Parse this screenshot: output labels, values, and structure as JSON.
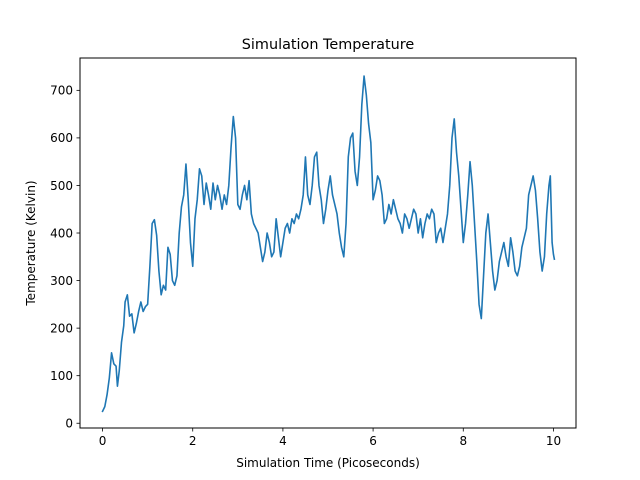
{
  "chart_data": {
    "type": "line",
    "title": "Simulation Temperature",
    "xlabel": "Simulation Time (Picoseconds)",
    "ylabel": "Temperature (Kelvin)",
    "xlim": [
      -0.5,
      10.5
    ],
    "ylim": [
      -10,
      768
    ],
    "xticks": [
      0,
      2,
      4,
      6,
      8,
      10
    ],
    "yticks": [
      0,
      100,
      200,
      300,
      400,
      500,
      600,
      700
    ],
    "grid": false,
    "legend": "none",
    "series": [
      {
        "color": "#1f77b4",
        "points": [
          [
            0.0,
            25
          ],
          [
            0.05,
            35
          ],
          [
            0.1,
            60
          ],
          [
            0.15,
            95
          ],
          [
            0.2,
            148
          ],
          [
            0.25,
            125
          ],
          [
            0.3,
            120
          ],
          [
            0.33,
            78
          ],
          [
            0.37,
            110
          ],
          [
            0.42,
            170
          ],
          [
            0.47,
            205
          ],
          [
            0.5,
            255
          ],
          [
            0.55,
            270
          ],
          [
            0.6,
            225
          ],
          [
            0.65,
            230
          ],
          [
            0.7,
            190
          ],
          [
            0.75,
            210
          ],
          [
            0.8,
            235
          ],
          [
            0.85,
            255
          ],
          [
            0.9,
            235
          ],
          [
            0.95,
            245
          ],
          [
            1.0,
            250
          ],
          [
            1.05,
            330
          ],
          [
            1.1,
            420
          ],
          [
            1.15,
            428
          ],
          [
            1.2,
            395
          ],
          [
            1.25,
            320
          ],
          [
            1.3,
            270
          ],
          [
            1.35,
            290
          ],
          [
            1.4,
            280
          ],
          [
            1.45,
            370
          ],
          [
            1.5,
            355
          ],
          [
            1.55,
            300
          ],
          [
            1.6,
            290
          ],
          [
            1.65,
            310
          ],
          [
            1.7,
            400
          ],
          [
            1.75,
            455
          ],
          [
            1.8,
            480
          ],
          [
            1.85,
            545
          ],
          [
            1.9,
            470
          ],
          [
            1.95,
            380
          ],
          [
            2.0,
            330
          ],
          [
            2.05,
            430
          ],
          [
            2.1,
            470
          ],
          [
            2.15,
            535
          ],
          [
            2.2,
            520
          ],
          [
            2.25,
            460
          ],
          [
            2.3,
            505
          ],
          [
            2.35,
            480
          ],
          [
            2.4,
            450
          ],
          [
            2.45,
            505
          ],
          [
            2.5,
            470
          ],
          [
            2.55,
            500
          ],
          [
            2.6,
            480
          ],
          [
            2.65,
            450
          ],
          [
            2.7,
            480
          ],
          [
            2.75,
            460
          ],
          [
            2.8,
            500
          ],
          [
            2.85,
            580
          ],
          [
            2.9,
            645
          ],
          [
            2.95,
            600
          ],
          [
            3.0,
            460
          ],
          [
            3.05,
            450
          ],
          [
            3.1,
            480
          ],
          [
            3.15,
            500
          ],
          [
            3.2,
            470
          ],
          [
            3.25,
            510
          ],
          [
            3.3,
            440
          ],
          [
            3.35,
            420
          ],
          [
            3.4,
            410
          ],
          [
            3.45,
            400
          ],
          [
            3.5,
            370
          ],
          [
            3.55,
            340
          ],
          [
            3.6,
            360
          ],
          [
            3.65,
            400
          ],
          [
            3.7,
            380
          ],
          [
            3.75,
            350
          ],
          [
            3.8,
            360
          ],
          [
            3.85,
            430
          ],
          [
            3.9,
            390
          ],
          [
            3.95,
            350
          ],
          [
            4.0,
            380
          ],
          [
            4.05,
            410
          ],
          [
            4.1,
            420
          ],
          [
            4.15,
            400
          ],
          [
            4.2,
            430
          ],
          [
            4.25,
            420
          ],
          [
            4.3,
            440
          ],
          [
            4.35,
            430
          ],
          [
            4.4,
            450
          ],
          [
            4.45,
            480
          ],
          [
            4.5,
            560
          ],
          [
            4.55,
            480
          ],
          [
            4.6,
            460
          ],
          [
            4.65,
            500
          ],
          [
            4.7,
            560
          ],
          [
            4.75,
            570
          ],
          [
            4.8,
            500
          ],
          [
            4.85,
            470
          ],
          [
            4.9,
            420
          ],
          [
            4.95,
            450
          ],
          [
            5.0,
            490
          ],
          [
            5.05,
            520
          ],
          [
            5.1,
            480
          ],
          [
            5.15,
            460
          ],
          [
            5.2,
            440
          ],
          [
            5.25,
            400
          ],
          [
            5.3,
            370
          ],
          [
            5.35,
            350
          ],
          [
            5.4,
            420
          ],
          [
            5.45,
            560
          ],
          [
            5.5,
            600
          ],
          [
            5.55,
            610
          ],
          [
            5.6,
            530
          ],
          [
            5.65,
            500
          ],
          [
            5.7,
            560
          ],
          [
            5.75,
            670
          ],
          [
            5.8,
            730
          ],
          [
            5.85,
            690
          ],
          [
            5.9,
            630
          ],
          [
            5.95,
            590
          ],
          [
            6.0,
            470
          ],
          [
            6.05,
            490
          ],
          [
            6.1,
            520
          ],
          [
            6.15,
            510
          ],
          [
            6.2,
            480
          ],
          [
            6.25,
            420
          ],
          [
            6.3,
            430
          ],
          [
            6.35,
            460
          ],
          [
            6.4,
            440
          ],
          [
            6.45,
            470
          ],
          [
            6.5,
            450
          ],
          [
            6.55,
            430
          ],
          [
            6.6,
            420
          ],
          [
            6.65,
            400
          ],
          [
            6.7,
            440
          ],
          [
            6.75,
            430
          ],
          [
            6.8,
            410
          ],
          [
            6.85,
            430
          ],
          [
            6.9,
            450
          ],
          [
            6.95,
            440
          ],
          [
            7.0,
            400
          ],
          [
            7.05,
            430
          ],
          [
            7.1,
            390
          ],
          [
            7.15,
            420
          ],
          [
            7.2,
            440
          ],
          [
            7.25,
            430
          ],
          [
            7.3,
            450
          ],
          [
            7.35,
            440
          ],
          [
            7.4,
            380
          ],
          [
            7.45,
            400
          ],
          [
            7.5,
            410
          ],
          [
            7.55,
            380
          ],
          [
            7.6,
            410
          ],
          [
            7.65,
            440
          ],
          [
            7.7,
            500
          ],
          [
            7.75,
            600
          ],
          [
            7.8,
            640
          ],
          [
            7.85,
            570
          ],
          [
            7.9,
            520
          ],
          [
            7.95,
            450
          ],
          [
            8.0,
            380
          ],
          [
            8.05,
            420
          ],
          [
            8.1,
            480
          ],
          [
            8.15,
            550
          ],
          [
            8.2,
            500
          ],
          [
            8.25,
            420
          ],
          [
            8.3,
            340
          ],
          [
            8.35,
            250
          ],
          [
            8.4,
            220
          ],
          [
            8.45,
            310
          ],
          [
            8.5,
            400
          ],
          [
            8.55,
            440
          ],
          [
            8.6,
            380
          ],
          [
            8.65,
            320
          ],
          [
            8.7,
            280
          ],
          [
            8.75,
            300
          ],
          [
            8.8,
            340
          ],
          [
            8.85,
            360
          ],
          [
            8.9,
            380
          ],
          [
            8.95,
            350
          ],
          [
            9.0,
            330
          ],
          [
            9.05,
            390
          ],
          [
            9.1,
            360
          ],
          [
            9.15,
            320
          ],
          [
            9.2,
            310
          ],
          [
            9.25,
            330
          ],
          [
            9.3,
            370
          ],
          [
            9.35,
            390
          ],
          [
            9.4,
            410
          ],
          [
            9.45,
            480
          ],
          [
            9.5,
            500
          ],
          [
            9.55,
            520
          ],
          [
            9.6,
            490
          ],
          [
            9.65,
            430
          ],
          [
            9.7,
            360
          ],
          [
            9.75,
            320
          ],
          [
            9.8,
            350
          ],
          [
            9.85,
            440
          ],
          [
            9.9,
            500
          ],
          [
            9.93,
            520
          ],
          [
            9.97,
            380
          ],
          [
            10.0,
            355
          ],
          [
            10.02,
            345
          ]
        ]
      }
    ]
  }
}
